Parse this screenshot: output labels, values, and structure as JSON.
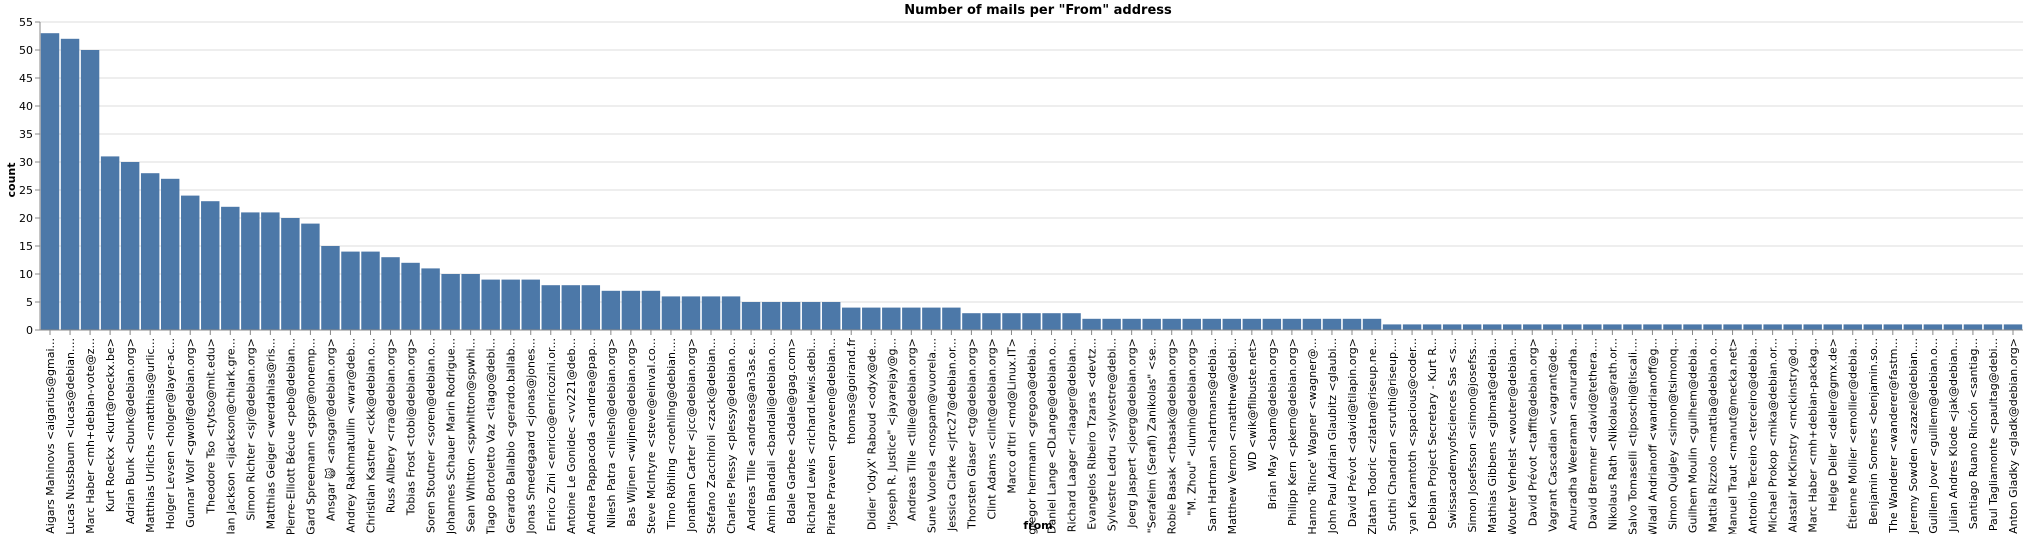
{
  "chart_data": {
    "type": "bar",
    "title": "Number of mails per \"From\" address",
    "xlabel": "from",
    "ylabel": "count",
    "ylim": [
      0,
      55
    ],
    "yticks": [
      0,
      5,
      10,
      15,
      20,
      25,
      30,
      35,
      40,
      45,
      50,
      55
    ],
    "grid": true,
    "bar_color": "#4c78a8",
    "categories": [
      "Aigars Mahinovs <aigarius@gmai...",
      "Lucas Nussbaum <lucas@debian....",
      "Marc Haber <mh+debian-vote@z...",
      "Kurt Roeckx <kurt@roeckx.be>",
      "Adrian Bunk <bunk@debian.org>",
      "Matthias Urlichs <matthias@urlic...",
      "Holger Levsen <holger@layer-ac...",
      "Gunnar Wolf <gwolf@debian.org>",
      "Theodore Tso <tytso@mit.edu>",
      "Ian Jackson <ijackson@chiark.gre...",
      "Simon Richter <sjr@debian.org>",
      "Matthias Geiger <werdahias@ris...",
      "Pierre-Elliott Bécue <peb@debian...",
      "Gard Spreemann <gspr@nonemp...",
      "Ansgar 🙀 <ansgar@debian.org>",
      "Andrey Rakhmatullin <wrar@deb...",
      "Christian Kastner <ckk@debian.o...",
      "Russ Allbery <rra@debian.org>",
      "Tobias Frost <tobi@debian.org>",
      "Soren Stoutner <soren@debian.o...",
      "Johannes Schauer Marin Rodrigue...",
      "Sean Whitton <spwhitton@spwhi...",
      "Tiago Bortoletto Vaz <tiago@debi...",
      "Gerardo Ballabio <gerardo.ballab...",
      "Jonas Smedegaard <jonas@jones...",
      "Enrico Zini <enrico@enricozini.or...",
      "Antoine Le Gonidec <vv221@deb...",
      "Andrea Pappacoda <andrea@pap...",
      "Nilesh Patra <nilesh@debian.org>",
      "Bas Wijnen <wijnen@debian.org>",
      "Steve McIntyre <steve@einval.co...",
      "Timo Röhling <roehling@debian....",
      "Jonathan Carter <jcc@debian.org>",
      "Stefano Zacchiroli <zack@debian...",
      "Charles Plessy <plessy@debian.o...",
      "Andreas Tille <andreas@an3as.e...",
      "Amin Bandali <bandali@debian.o...",
      "Bdale Garbee <bdale@gag.com>",
      "Richard Lewis <richard.lewis.debi...",
      "Pirate Praveen <praveen@debian...",
      "thomas@goirand.fr",
      "Didier 'OdyX' Raboud <odyx@de...",
      "\"Joseph R. Justice\" <jayarejay@g...",
      "Andreas Tille <tille@debian.org>",
      "Sune Vuorela <nospam@vuorela....",
      "Jessica Clarke <jrtc27@debian.or...",
      "Thorsten Glaser <tg@debian.org>",
      "Clint Adams <clint@debian.org>",
      "Marco d'Itri <md@Linux.IT>",
      "gregor herrmann <gregoa@debia...",
      "Daniel Lange <DLange@debian.o...",
      "Richard Laager <rlaager@debian...",
      "Evangelos Ribeiro Tzaras <devtz...",
      "Sylvestre Ledru <sylvestre@debi...",
      "Joerg Jaspert <joerg@debian.org>",
      "\"Serafeim (Serafi) Zanikolas\" <se...",
      "Robie Basak <rbasak@debian.org>",
      "\"M. Zhou\" <lumin@debian.org>",
      "Sam Hartman <hartmans@debia...",
      "Matthew Vernon <matthew@debi...",
      "WD <wik@flibuste.net>",
      "Brian May <bam@debian.org>",
      "Philipp Kern <pkern@debian.org>",
      "Hanno 'Rince' Wagner <wagner@...",
      "John Paul Adrian Glaubitz <glaubi...",
      "David Prévot <david@tilapin.org>",
      "Zlatan Todoric <zlatan@riseup.ne...",
      "Sruthi Chandran <sruthi@riseup....",
      "Aryan Karamtoth <spacious@coder...",
      "Debian Project Secretary - Kurt R...",
      "Swissacademyofsciences Sas <s...",
      "Simon Josefsson <simon@josefss...",
      "Mathias Gibbens <gibmat@debia...",
      "Wouter Verhelst <wouter@debian...",
      "David Prévot <taffit@debian.org>",
      "Vagrant Cascadian <vagrant@de...",
      "Anuradha Weeraman <anuradha...",
      "David Bremner <david@tethera....",
      "Nikolaus Rath <Nikolaus@rath.or...",
      "Salvo Tomaselli <tiposchi@tiscali....",
      "Wladi Andrianoff <wandrianoff@g...",
      "Simon Quigley <simon@tsimonq...",
      "Guilhem Moulin <guilhem@debia...",
      "Mattia Rizzolo <mattia@debian.o...",
      "Manuel Traut <manut@mecka.net>",
      "Antonio Terceiro <terceiro@debia...",
      "Michael Prokop <mika@debian.or...",
      "Alastair McKinstry <mckinstry@d...",
      "Marc Haber <mh+debian-packag...",
      "Helge Deller <deller@gmx.de>",
      "Étienne Mollier <emollier@debia...",
      "Benjamin Somers <benjamin.so...",
      "The Wanderer <wanderer@fastm...",
      "Jeremy Sowden <azazel@debian....",
      "Guillem Jover <guillem@debian.o...",
      "Julian Andres Klode <jak@debian...",
      "Santiago Ruano Rincón <santiag...",
      "Paul Tagliamonte <paultag@debi...",
      "Anton Gladky <gladk@debian.org>"
    ],
    "values": [
      53,
      52,
      50,
      31,
      30,
      28,
      27,
      24,
      23,
      22,
      21,
      21,
      20,
      19,
      15,
      14,
      14,
      13,
      12,
      11,
      10,
      10,
      9,
      9,
      9,
      8,
      8,
      8,
      7,
      7,
      7,
      6,
      6,
      6,
      6,
      5,
      5,
      5,
      5,
      5,
      4,
      4,
      4,
      4,
      4,
      4,
      3,
      3,
      3,
      3,
      3,
      3,
      2,
      2,
      2,
      2,
      2,
      2,
      2,
      2,
      2,
      2,
      2,
      2,
      2,
      2,
      2,
      1,
      1,
      1,
      1,
      1,
      1,
      1,
      1,
      1,
      1,
      1,
      1,
      1,
      1,
      1,
      1,
      1,
      1,
      1,
      1,
      1,
      1,
      1,
      1,
      1,
      1,
      1,
      1,
      1,
      1,
      1,
      1
    ]
  }
}
